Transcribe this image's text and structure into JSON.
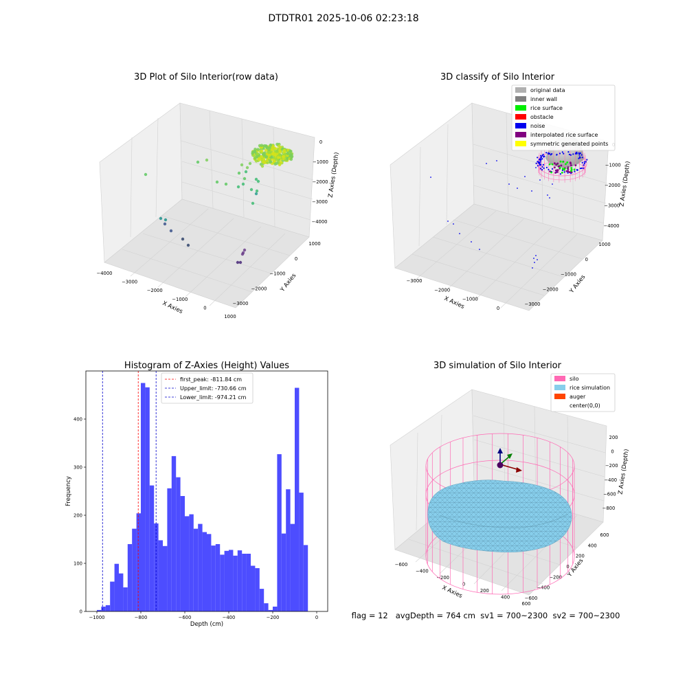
{
  "figure": {
    "title": "DTDTR01 2025-10-06 02:23:18",
    "status_line": "flag = 12   avgDepth = 764 cm  sv1 = 700~2300  sv2 = 700~2300"
  },
  "chart_data": [
    {
      "type": "scatter",
      "title": "3D Plot of Silo Interior(row data)",
      "xlabel": "X Axies",
      "ylabel": "Y Axies",
      "zlabel": "Z Axies (Depth)",
      "x_ticks": [
        "−4000",
        "−3000",
        "−2000",
        "−1000",
        "0",
        "1000"
      ],
      "y_ticks": [
        "1000",
        "0",
        "−1000",
        "−2000",
        "−3000"
      ],
      "z_ticks": [
        "0",
        "−1000",
        "−2000",
        "−3000",
        "−4000"
      ],
      "colormap": "viridis",
      "cluster_colors": [
        "#d4e21a",
        "#a0da39",
        "#7ccf5a",
        "#5ec962",
        "#3fbc73",
        "#2a9d8f",
        "#21918c",
        "#3b528b",
        "#31446b",
        "#482878",
        "#6b3e8a"
      ]
    },
    {
      "type": "scatter",
      "title": "3D classify of Silo Interior",
      "xlabel": "X Axies",
      "ylabel": "Y Axies",
      "zlabel": "Z Axies (Depth)",
      "x_ticks": [
        "−3000",
        "−2000",
        "−1000",
        "0"
      ],
      "y_ticks": [
        "1000",
        "0",
        "−1000",
        "−2000",
        "−3000"
      ],
      "z_ticks": [
        "0",
        "−1000",
        "−2000",
        "−3000",
        "−4000"
      ],
      "legend_position": "top-right",
      "legend": [
        {
          "label": "original data",
          "color": "#b0b0b0"
        },
        {
          "label": "inner wall",
          "color": "#808080"
        },
        {
          "label": "rice surface",
          "color": "#00ee00"
        },
        {
          "label": "obstacle",
          "color": "#ff0000"
        },
        {
          "label": "noise",
          "color": "#0000ee"
        },
        {
          "label": "interpolated rice surface",
          "color": "#800080"
        },
        {
          "label": "symmetric generated points",
          "color": "#ffff00"
        }
      ]
    },
    {
      "type": "bar",
      "title": "Histogram of Z-Axies (Height) Values",
      "xlabel": "Depth (cm)",
      "ylabel": "Frequency",
      "bar_color": "#4d4dff",
      "xlim": [
        -1050,
        50
      ],
      "ylim": [
        0,
        500
      ],
      "x_ticks": [
        -1000,
        -800,
        -600,
        -400,
        -200,
        0
      ],
      "y_ticks": [
        0,
        100,
        200,
        300,
        400
      ],
      "bin_start": -1000,
      "bin_width": 20,
      "values": [
        3,
        10,
        13,
        62,
        99,
        79,
        50,
        140,
        172,
        204,
        475,
        466,
        262,
        183,
        148,
        136,
        256,
        323,
        279,
        240,
        198,
        202,
        172,
        182,
        165,
        161,
        137,
        140,
        118,
        126,
        128,
        116,
        127,
        120,
        120,
        95,
        90,
        47,
        17,
        3,
        10,
        327,
        162,
        254,
        182,
        465,
        247,
        138
      ],
      "vlines": [
        {
          "label": "first_peak: -811.84 cm",
          "x": -811.84,
          "color": "#ff0000"
        },
        {
          "label": "Upper_limit: -730.66 cm",
          "x": -730.66,
          "color": "#0000cc"
        },
        {
          "label": "Lower_limit: -974.21 cm",
          "x": -974.21,
          "color": "#0000cc"
        }
      ],
      "legend_position": "top-center"
    },
    {
      "type": "surface",
      "title": "3D simulation of Silo Interior",
      "xlabel": "X Axies",
      "ylabel": "Y Axies",
      "zlabel": "Z Axies (Depth)",
      "x_ticks": [
        "−600",
        "−400",
        "−200",
        "0",
        "200",
        "400",
        "600"
      ],
      "y_ticks": [
        "600",
        "400",
        "200",
        "0",
        "−200",
        "−400",
        "−600"
      ],
      "z_ticks": [
        "200",
        "0",
        "−200",
        "−400",
        "−600",
        "−800"
      ],
      "legend_position": "top-right",
      "legend": [
        {
          "label": "silo",
          "color": "#ff69b4"
        },
        {
          "label": "rice simulation",
          "color": "#87ceeb"
        },
        {
          "label": "auger",
          "color": "#ff4500"
        },
        {
          "label": "center(0,0)",
          "color": "#ffffff"
        }
      ]
    }
  ]
}
